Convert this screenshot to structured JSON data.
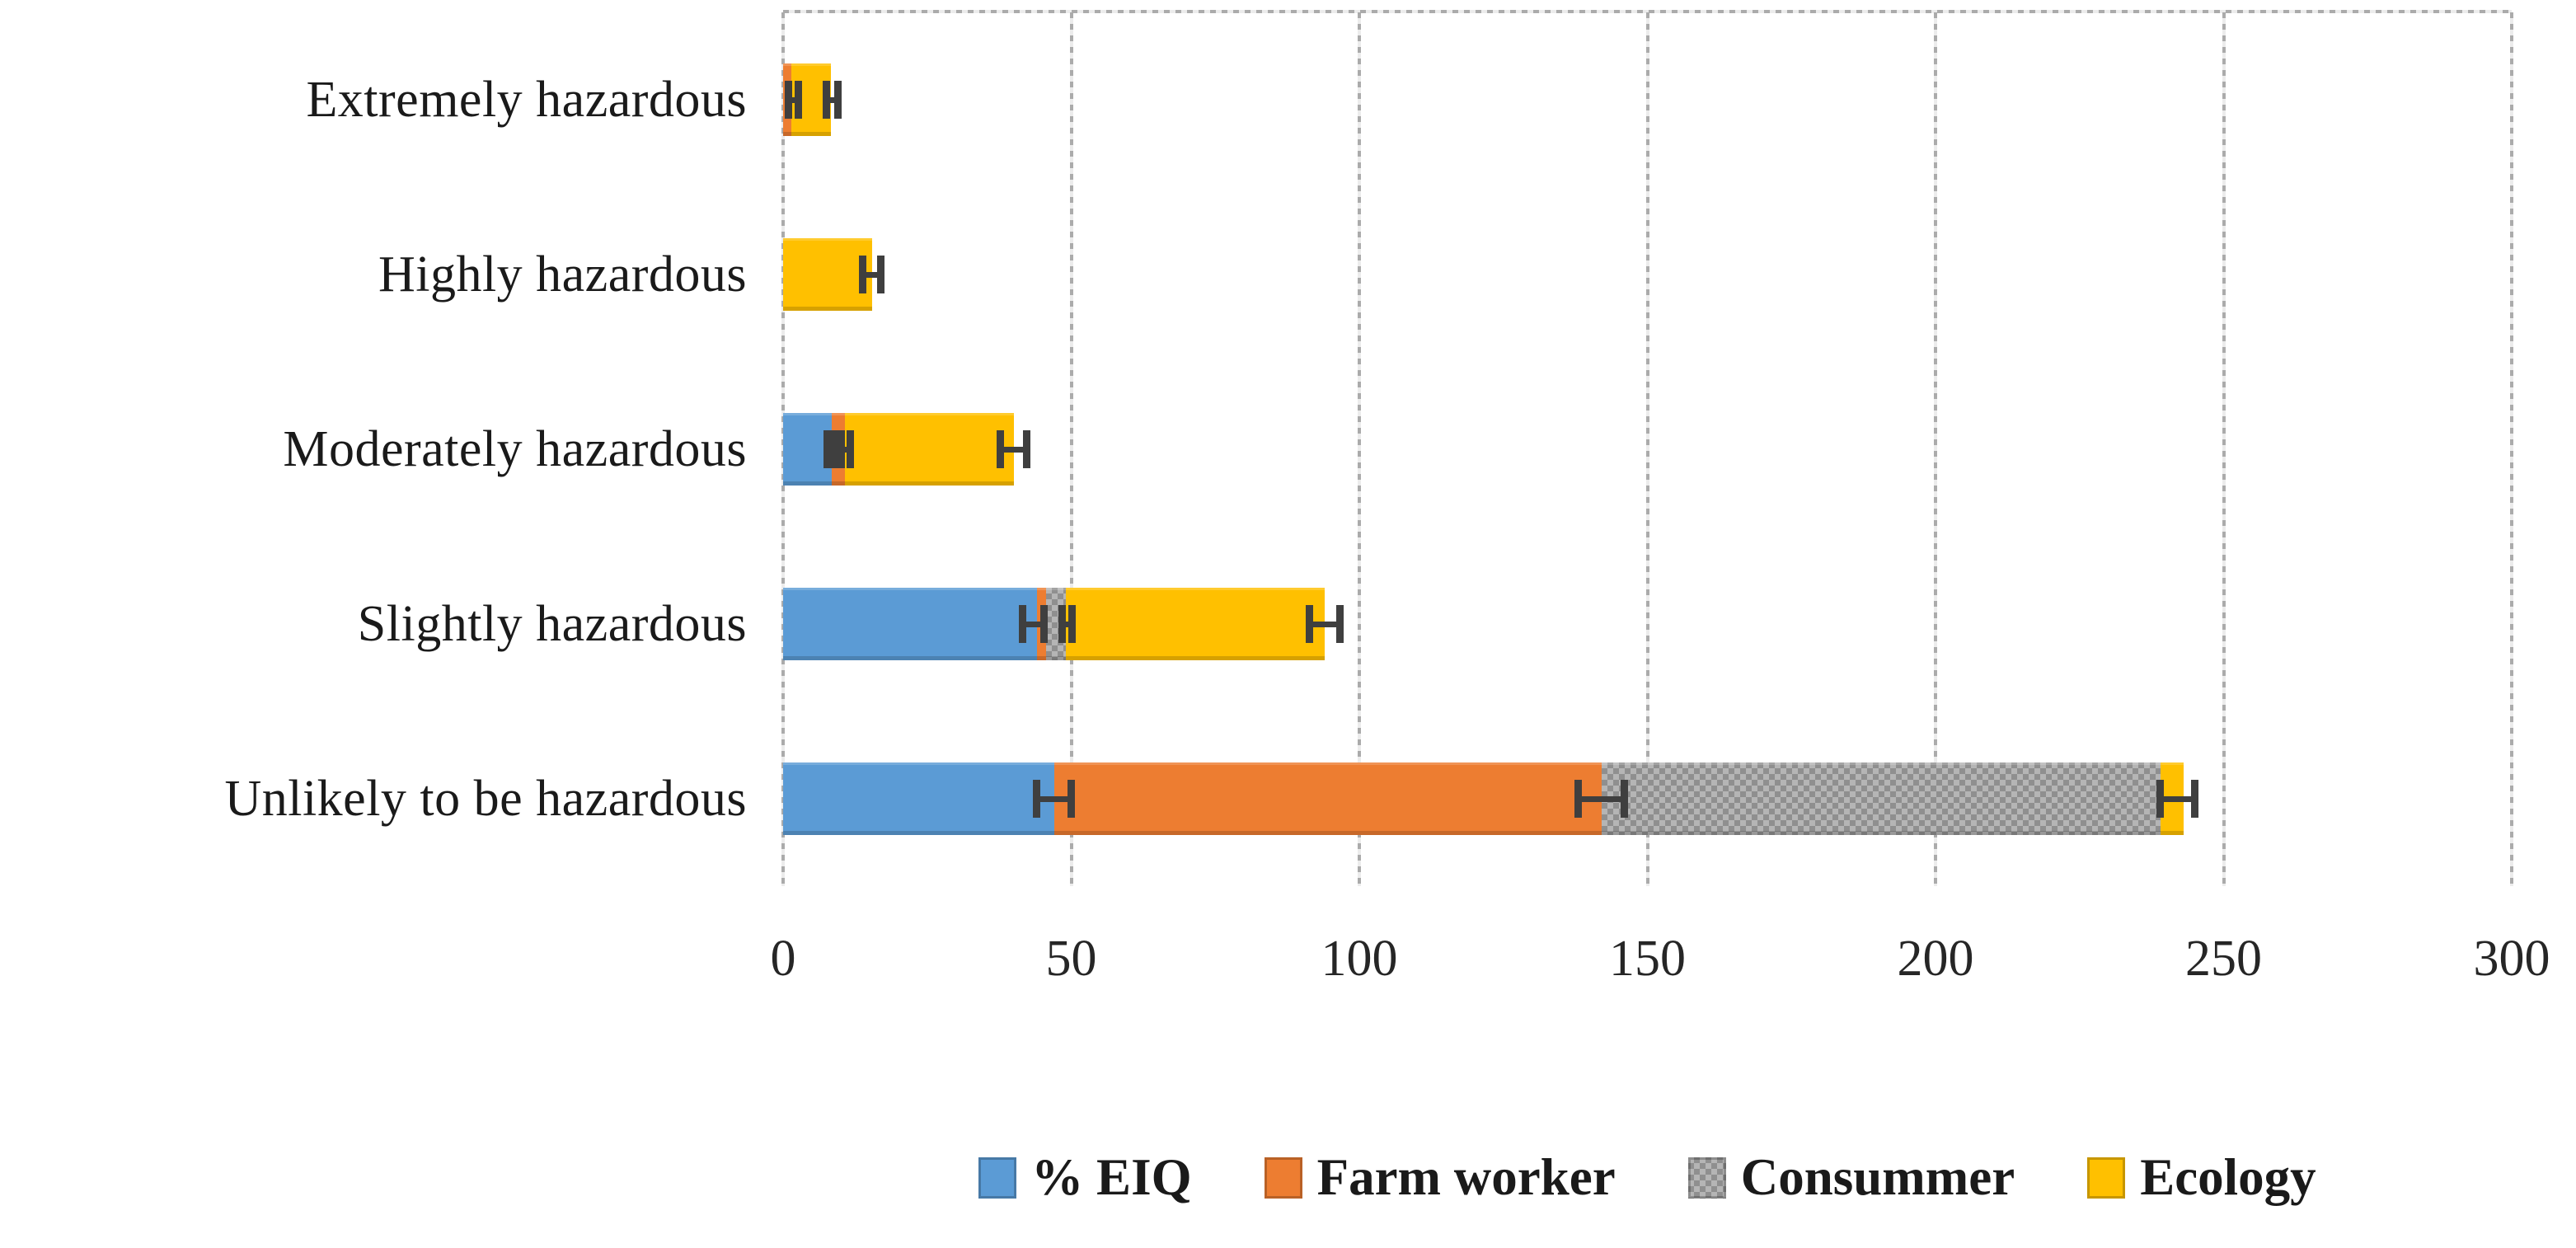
{
  "chart_data": {
    "type": "bar",
    "orientation": "horizontal",
    "stacked": true,
    "title": "",
    "xlabel": "",
    "ylabel": "",
    "categories": [
      "Extremely hazardous",
      "Highly hazardous",
      "Moderately hazardous",
      "Slightly hazardous",
      "Unlikely to be hazardous"
    ],
    "series": [
      {
        "name": "% EIQ",
        "color": "#5B9BD5",
        "pattern": "solid",
        "values": [
          0,
          0,
          8.5,
          44,
          47
        ]
      },
      {
        "name": "Farm worker",
        "color": "#ED7D31",
        "pattern": "solid",
        "values": [
          1.4,
          0,
          2.3,
          1.7,
          95
        ]
      },
      {
        "name": "Consummer",
        "color": "#B5B5B5",
        "pattern": "checker",
        "pattern_dark": "#8F8F8F",
        "values": [
          0,
          0,
          0,
          3.3,
          97
        ]
      },
      {
        "name": "Ecology",
        "color": "#FFC000",
        "pattern": "solid",
        "values": [
          6.9,
          15.5,
          29.2,
          45,
          4
        ]
      }
    ],
    "totals": [
      8.3,
      15.5,
      40,
      94,
      243
    ],
    "error_bars": [
      [
        {
          "x": 1.8,
          "e": 0.8
        },
        {
          "x": 8.5,
          "e": 1.0
        }
      ],
      [
        {
          "x": 15.4,
          "e": 1.6
        }
      ],
      [
        {
          "x": 8.3,
          "e": 0.7
        },
        {
          "x": 10.9,
          "e": 0.8
        },
        {
          "x": 40,
          "e": 2.3
        }
      ],
      [
        {
          "x": 43.4,
          "e": 1.9
        },
        {
          "x": 49.3,
          "e": 0.9
        },
        {
          "x": 94,
          "e": 2.6
        }
      ],
      [
        {
          "x": 47,
          "e": 3.0
        },
        {
          "x": 142,
          "e": 4.0
        },
        {
          "x": 242,
          "e": 3.0
        }
      ]
    ],
    "xlim": [
      0,
      300
    ],
    "xticks": [
      "0",
      "50",
      "100",
      "150",
      "200",
      "250",
      "300"
    ],
    "grid": "vertical",
    "grid_color": "#ABABAB",
    "error_bar_color": "#3F3F3F",
    "background_color": "#FFFFFF",
    "legend_position": "bottom",
    "legend_entries": [
      "% EIQ",
      "Farm worker",
      "Consummer",
      "Ecology"
    ]
  }
}
